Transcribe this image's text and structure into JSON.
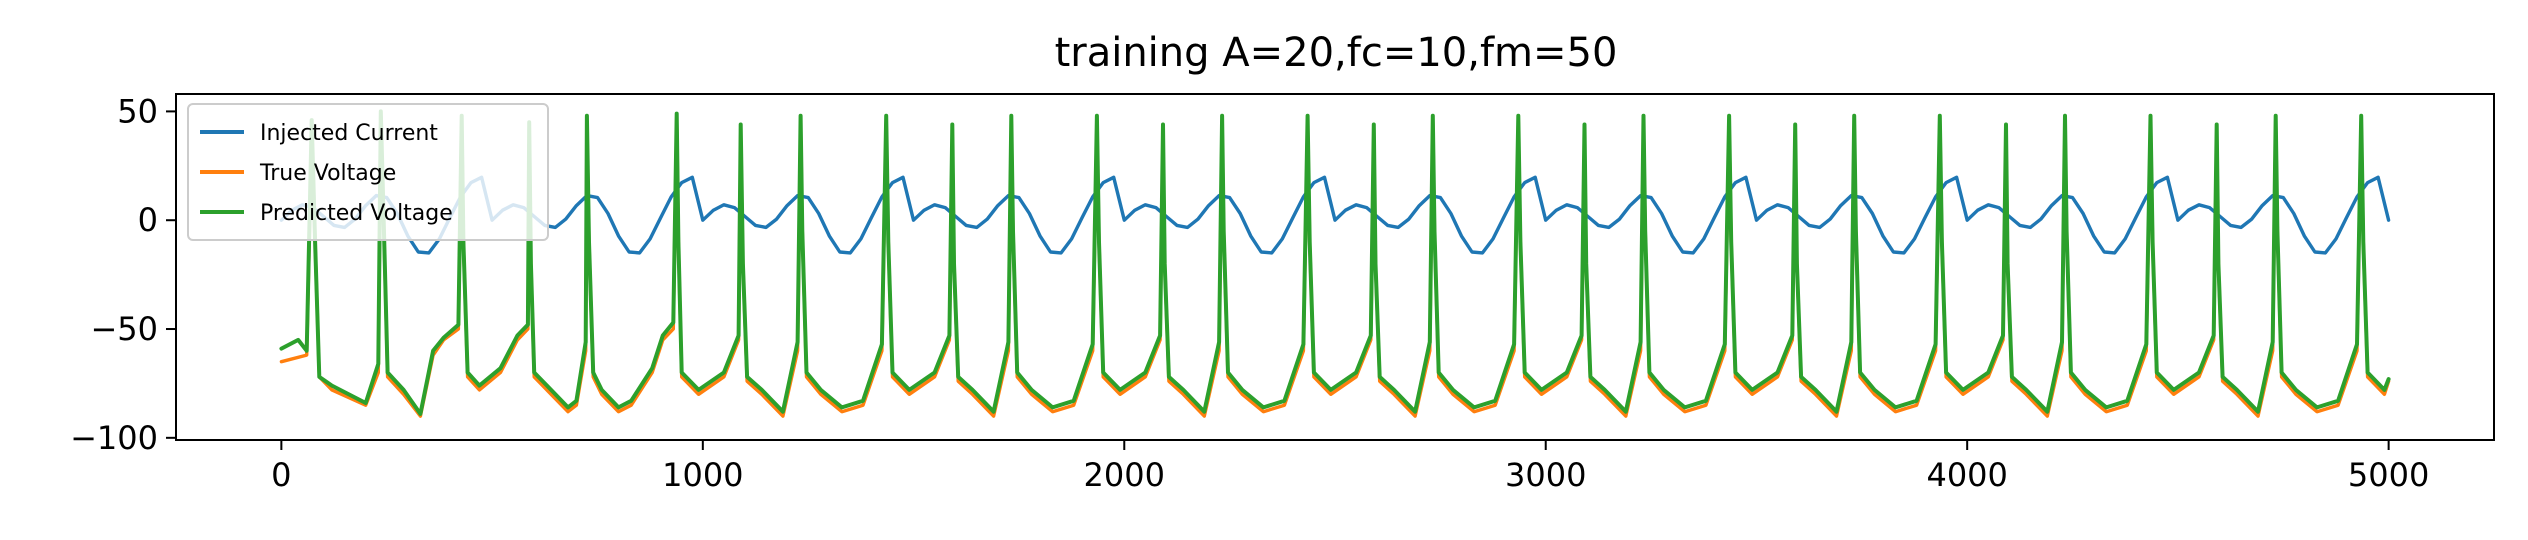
{
  "chart_data": {
    "type": "line",
    "title": "training A=20,fc=10,fm=50",
    "xlabel": "",
    "ylabel": "",
    "xlim": [
      -250,
      5250
    ],
    "ylim": [
      -101,
      58
    ],
    "xticks": [
      0,
      1000,
      2000,
      3000,
      4000,
      5000
    ],
    "xtick_labels": [
      "0",
      "1000",
      "2000",
      "3000",
      "4000",
      "5000"
    ],
    "yticks": [
      50,
      0,
      -50,
      -100
    ],
    "ytick_labels": [
      "50",
      "0",
      "−50",
      "−100"
    ],
    "grid": false,
    "legend_position": "upper-left",
    "colors": {
      "Injected Current": "#1f77b4",
      "True Voltage": "#ff7f0e",
      "Predicted Voltage": "#2ca02c"
    },
    "series": [
      {
        "name": "Injected Current",
        "description_of_shape": "sum of sinusoids, period 500",
        "x": [
          0,
          25,
          50,
          75,
          100,
          125,
          150,
          175,
          200,
          225,
          250,
          275,
          300,
          325,
          350,
          375,
          400,
          425,
          450,
          475,
          500
        ],
        "values": [
          0,
          4.6,
          7.1,
          5.8,
          1.7,
          -2.4,
          -3.3,
          0.5,
          6.7,
          11.3,
          10.4,
          3.1,
          -7.2,
          -14.6,
          -15.0,
          -8.6,
          1.2,
          10.7,
          17.3,
          19.7,
          0
        ]
      },
      {
        "name": "True Voltage",
        "x": [
          0,
          60,
          72,
          80,
          90,
          120,
          200,
          230,
          236,
          242,
          252,
          290,
          330,
          360,
          385,
          420,
          428,
          432,
          442,
          470,
          520,
          560,
          585,
          588,
          592,
          600,
          640,
          680,
          700,
          722,
          725,
          730,
          740,
          760,
          800,
          830,
          880,
          905,
          930,
          938,
          942,
          950,
          990,
          1050,
          1085,
          1090,
          1095,
          1105,
          1140,
          1190,
          1225,
          1232,
          1236,
          1246,
          1280,
          1330,
          1380,
          1425,
          1435,
          1440,
          1450,
          1490,
          1550,
          1585,
          1592,
          1596,
          1606,
          1640,
          1690,
          1725,
          1732,
          1736,
          1746,
          1780,
          1830,
          1880,
          1925,
          1935,
          1940,
          1950,
          1990,
          2050,
          2085,
          2092,
          2096,
          2106,
          2140,
          2190,
          2225,
          2232,
          2236,
          2246,
          2280,
          2330,
          2380,
          2425,
          2435,
          2440,
          2450,
          2490,
          2550,
          2585,
          2592,
          2596,
          2606,
          2640,
          2690,
          2725,
          2732,
          2736,
          2746,
          2780,
          2830,
          2880,
          2925,
          2935,
          2940,
          2950,
          2990,
          3050,
          3085,
          3092,
          3096,
          3106,
          3140,
          3190,
          3225,
          3232,
          3236,
          3246,
          3280,
          3330,
          3380,
          3425,
          3435,
          3440,
          3450,
          3490,
          3550,
          3585,
          3592,
          3596,
          3606,
          3640,
          3690,
          3725,
          3732,
          3736,
          3746,
          3780,
          3830,
          3880,
          3925,
          3935,
          3940,
          3950,
          3990,
          4050,
          4085,
          4092,
          4096,
          4106,
          4140,
          4190,
          4225,
          4232,
          4236,
          4246,
          4280,
          4330,
          4380,
          4425,
          4435,
          4440,
          4450,
          4490,
          4550,
          4585,
          4592,
          4596,
          4606,
          4640,
          4690,
          4725,
          4732,
          4736,
          4746,
          4780,
          4830,
          4880,
          4925,
          4935,
          4940,
          4950,
          4990,
          5000
        ],
        "values": [
          -65,
          -62,
          40,
          -10,
          -72,
          -78,
          -85,
          -70,
          48,
          5,
          -72,
          -80,
          -90,
          -62,
          -55,
          -50,
          46,
          -10,
          -72,
          -78,
          -70,
          -55,
          -50,
          40,
          -20,
          -72,
          -80,
          -88,
          -85,
          -60,
          46,
          -10,
          -72,
          -80,
          -88,
          -85,
          -70,
          -55,
          -50,
          48,
          -10,
          -72,
          -80,
          -72,
          -55,
          40,
          -20,
          -74,
          -80,
          -90,
          -60,
          46,
          -5,
          -72,
          -80,
          -88,
          -85,
          -60,
          46,
          -10,
          -72,
          -80,
          -72,
          -55,
          40,
          -20,
          -74,
          -80,
          -90,
          -60,
          46,
          -5,
          -72,
          -80,
          -88,
          -85,
          -60,
          46,
          -10,
          -72,
          -80,
          -72,
          -55,
          40,
          -20,
          -74,
          -80,
          -90,
          -60,
          46,
          -5,
          -72,
          -80,
          -88,
          -85,
          -60,
          46,
          -10,
          -72,
          -80,
          -72,
          -55,
          40,
          -20,
          -74,
          -80,
          -90,
          -60,
          46,
          -5,
          -72,
          -80,
          -88,
          -85,
          -60,
          46,
          -10,
          -72,
          -80,
          -72,
          -55,
          40,
          -20,
          -74,
          -80,
          -90,
          -60,
          46,
          -5,
          -72,
          -80,
          -88,
          -85,
          -60,
          46,
          -10,
          -72,
          -80,
          -72,
          -55,
          40,
          -20,
          -74,
          -80,
          -90,
          -60,
          46,
          -5,
          -72,
          -80,
          -88,
          -85,
          -60,
          46,
          -10,
          -72,
          -80,
          -72,
          -55,
          40,
          -20,
          -74,
          -80,
          -90,
          -60,
          46,
          -5,
          -72,
          -80,
          -88,
          -85,
          -60,
          46,
          -10,
          -72,
          -80,
          -72,
          -55,
          40,
          -20,
          -74,
          -80,
          -90,
          -60,
          46,
          -5,
          -72,
          -80,
          -88,
          -85,
          -60,
          46,
          -10,
          -72,
          -80,
          -74
        ]
      },
      {
        "name": "Predicted Voltage",
        "note": "closely tracks True Voltage",
        "x": [
          0,
          40,
          60,
          72,
          80,
          90,
          120,
          200,
          230,
          236,
          242,
          252,
          290,
          330,
          360,
          385,
          420,
          428,
          432,
          442,
          470,
          520,
          560,
          585,
          588,
          592,
          600,
          640,
          680,
          700,
          722,
          725,
          730,
          740,
          760,
          800,
          830,
          880,
          905,
          930,
          938,
          942,
          950,
          990,
          1050,
          1085,
          1090,
          1095,
          1105,
          1140,
          1190,
          1225,
          1232,
          1236,
          1246,
          1280,
          1330,
          1380,
          1425,
          1435,
          1440,
          1450,
          1490,
          1550,
          1585,
          1592,
          1596,
          1606,
          1640,
          1690,
          1725,
          1732,
          1736,
          1746,
          1780,
          1830,
          1880,
          1925,
          1935,
          1940,
          1950,
          1990,
          2050,
          2085,
          2092,
          2096,
          2106,
          2140,
          2190,
          2225,
          2232,
          2236,
          2246,
          2280,
          2330,
          2380,
          2425,
          2435,
          2440,
          2450,
          2490,
          2550,
          2585,
          2592,
          2596,
          2606,
          2640,
          2690,
          2725,
          2732,
          2736,
          2746,
          2780,
          2830,
          2880,
          2925,
          2935,
          2940,
          2950,
          2990,
          3050,
          3085,
          3092,
          3096,
          3106,
          3140,
          3190,
          3225,
          3232,
          3236,
          3246,
          3280,
          3330,
          3380,
          3425,
          3435,
          3440,
          3450,
          3490,
          3550,
          3585,
          3592,
          3596,
          3606,
          3640,
          3690,
          3725,
          3732,
          3736,
          3746,
          3780,
          3830,
          3880,
          3925,
          3935,
          3940,
          3950,
          3990,
          4050,
          4085,
          4092,
          4096,
          4106,
          4140,
          4190,
          4225,
          4232,
          4236,
          4246,
          4280,
          4330,
          4380,
          4425,
          4435,
          4440,
          4450,
          4490,
          4550,
          4585,
          4592,
          4596,
          4606,
          4640,
          4690,
          4725,
          4732,
          4736,
          4746,
          4780,
          4830,
          4880,
          4925,
          4935,
          4940,
          4950,
          4990,
          5000
        ],
        "values": [
          -59,
          -55,
          -60,
          46,
          -10,
          -72,
          -76,
          -84,
          -66,
          50,
          5,
          -70,
          -78,
          -89,
          -60,
          -54,
          -48,
          48,
          -10,
          -70,
          -76,
          -68,
          -53,
          -48,
          45,
          -20,
          -70,
          -78,
          -86,
          -83,
          -56,
          48,
          -10,
          -70,
          -78,
          -86,
          -83,
          -68,
          -53,
          -47,
          49,
          -10,
          -70,
          -78,
          -70,
          -53,
          44,
          -20,
          -72,
          -78,
          -88,
          -56,
          48,
          -5,
          -70,
          -78,
          -86,
          -83,
          -57,
          48,
          -10,
          -70,
          -78,
          -70,
          -53,
          44,
          -20,
          -72,
          -78,
          -88,
          -56,
          48,
          -5,
          -70,
          -78,
          -86,
          -83,
          -57,
          48,
          -10,
          -70,
          -78,
          -70,
          -53,
          44,
          -20,
          -72,
          -78,
          -88,
          -56,
          48,
          -5,
          -70,
          -78,
          -86,
          -83,
          -57,
          48,
          -10,
          -70,
          -78,
          -70,
          -53,
          44,
          -20,
          -72,
          -78,
          -88,
          -56,
          48,
          -5,
          -70,
          -78,
          -86,
          -83,
          -57,
          48,
          -10,
          -70,
          -78,
          -70,
          -53,
          44,
          -20,
          -72,
          -78,
          -88,
          -56,
          48,
          -5,
          -70,
          -78,
          -86,
          -83,
          -57,
          48,
          -10,
          -70,
          -78,
          -70,
          -53,
          44,
          -20,
          -72,
          -78,
          -88,
          -56,
          48,
          -5,
          -70,
          -78,
          -86,
          -83,
          -57,
          48,
          -10,
          -70,
          -78,
          -70,
          -53,
          44,
          -20,
          -72,
          -78,
          -88,
          -56,
          48,
          -5,
          -70,
          -78,
          -86,
          -83,
          -57,
          48,
          -10,
          -70,
          -78,
          -70,
          -53,
          44,
          -20,
          -72,
          -78,
          -88,
          -56,
          48,
          -5,
          -70,
          -78,
          -86,
          -83,
          -57,
          48,
          -10,
          -70,
          -78,
          -73
        ]
      }
    ]
  }
}
